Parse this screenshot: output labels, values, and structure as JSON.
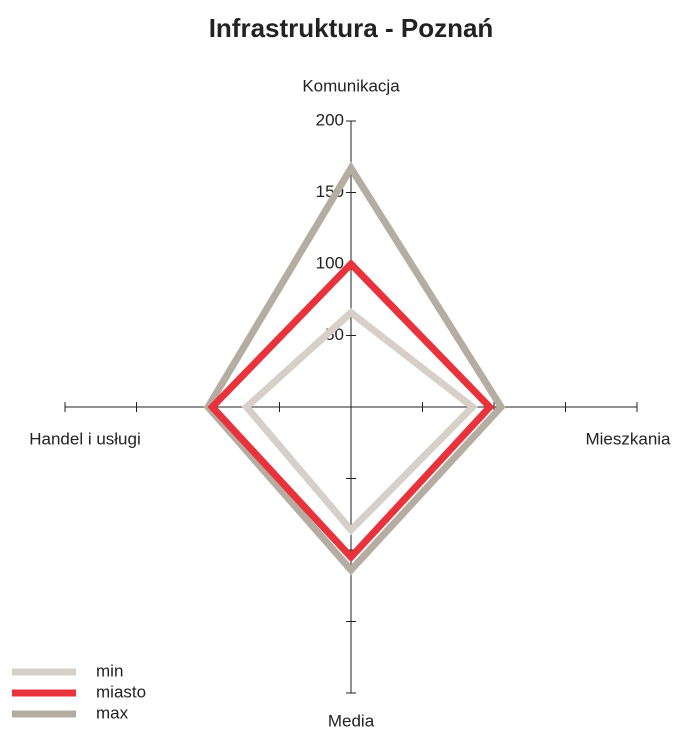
{
  "chart_data": {
    "type": "radar",
    "title": "Infrastruktura - Poznań",
    "categories": [
      "Komunikacja",
      "Mieszkania",
      "Media",
      "Handel i usługi"
    ],
    "rlim": [
      0,
      200
    ],
    "rticks": [
      50,
      100,
      150,
      200
    ],
    "series": [
      {
        "name": "min",
        "color": "#d6d0c8",
        "values": [
          66,
          85,
          86,
          73
        ]
      },
      {
        "name": "miasto",
        "color": "#e8323c",
        "values": [
          100,
          97,
          105,
          97
        ]
      },
      {
        "name": "max",
        "color": "#b5aca2",
        "values": [
          167,
          105,
          114,
          100
        ]
      }
    ]
  }
}
